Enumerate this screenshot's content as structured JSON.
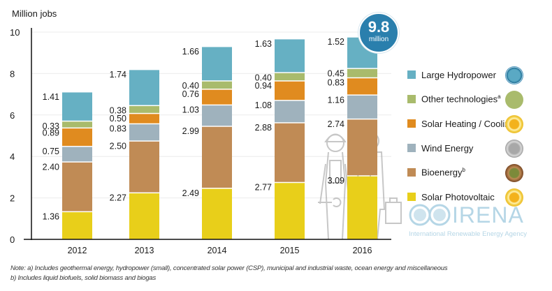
{
  "chart_data": {
    "type": "bar",
    "stacked": true,
    "title": "",
    "xlabel": "",
    "ylabel": "Million jobs",
    "ylim": [
      0,
      10
    ],
    "yticks": [
      0,
      2,
      4,
      6,
      8,
      10
    ],
    "grid": true,
    "categories": [
      "2012",
      "2013",
      "2014",
      "2015",
      "2016"
    ],
    "series": [
      {
        "name": "Solar Photovoltaic",
        "color": "#e8cf1a",
        "values": [
          1.36,
          2.27,
          2.49,
          2.77,
          3.09
        ]
      },
      {
        "name": "Bioenergy",
        "superscript": "b",
        "color": "#c08b55",
        "values": [
          2.4,
          2.5,
          2.99,
          2.88,
          2.74
        ]
      },
      {
        "name": "Wind Energy",
        "color": "#9fb2bd",
        "values": [
          0.75,
          0.83,
          1.03,
          1.08,
          1.16
        ]
      },
      {
        "name": "Solar Heating / Cooling",
        "color": "#e08b1f",
        "values": [
          0.89,
          0.5,
          0.76,
          0.94,
          0.83
        ]
      },
      {
        "name": "Other technologies",
        "superscript": "a",
        "color": "#a9bb6c",
        "values": [
          0.33,
          0.38,
          0.4,
          0.4,
          0.45
        ]
      },
      {
        "name": "Large Hydropower",
        "color": "#66b0c3",
        "values": [
          1.41,
          1.74,
          1.66,
          1.63,
          1.52
        ]
      }
    ],
    "legend_position": "right",
    "legend_order": [
      "Large Hydropower",
      "Other technologies",
      "Solar Heating / Cooling",
      "Wind Energy",
      "Bioenergy",
      "Solar Photovoltaic"
    ],
    "annotations": [
      {
        "text": "9.8",
        "subtext": "million",
        "attached_to": "2016 total"
      }
    ]
  },
  "total_badge": {
    "value": "9.8",
    "unit": "million"
  },
  "legend": [
    {
      "label": "Large Hydropower",
      "sup": "",
      "color": "#66b0c3",
      "icon": "water-drop-icon"
    },
    {
      "label": "Other technologies",
      "sup": "a",
      "color": "#a9bb6c",
      "icon": "other-technologies-icon"
    },
    {
      "label": "Solar Heating / Cooling",
      "sup": "",
      "color": "#e08b1f",
      "icon": "sun-icon"
    },
    {
      "label": "Wind Energy",
      "sup": "",
      "color": "#9fb2bd",
      "icon": "wind-turbine-icon"
    },
    {
      "label": "Bioenergy",
      "sup": "b",
      "color": "#c08b55",
      "icon": "leaf-icon"
    },
    {
      "label": "Solar Photovoltaic",
      "sup": "",
      "color": "#e8cf1a",
      "icon": "sun-icon"
    }
  ],
  "logo": {
    "name": "IRENA",
    "subtitle": "International Renewable Energy Agency"
  },
  "notes": [
    "Note: a) Includes geothermal energy, hydropower (small), concentrated solar power (CSP), municipal and industrial waste, ocean energy and miscellaneous",
    "b) Includes liquid biofuels, solid biomass and biogas"
  ]
}
